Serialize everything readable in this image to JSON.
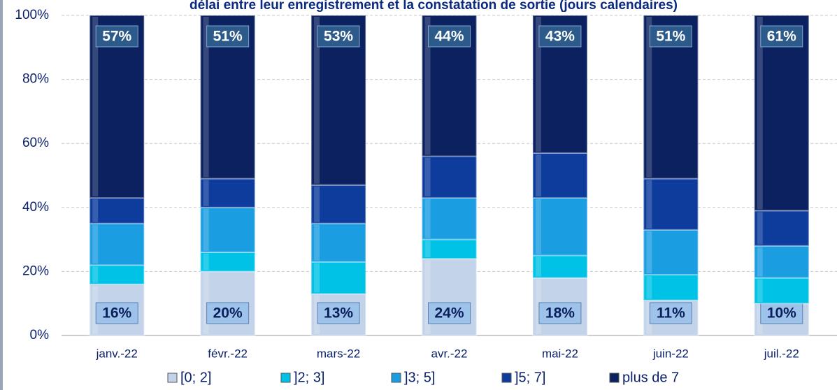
{
  "chart_data": {
    "type": "stacked_bar",
    "title": "délai entre leur enregistrement et la constatation de sortie (jours calendaires)",
    "categories": [
      "janv.-22",
      "févr.-22",
      "mars-22",
      "avr.-22",
      "mai-22",
      "juin-22",
      "juil.-22"
    ],
    "series": [
      {
        "name": "[0; 2]",
        "color": "#c3d3ea",
        "values": [
          16,
          20,
          13,
          24,
          18,
          11,
          10
        ],
        "value_labels": [
          "16%",
          "20%",
          "13%",
          "24%",
          "18%",
          "11%",
          "10%"
        ]
      },
      {
        "name": "]2; 3]",
        "color": "#00c2e6",
        "values": [
          6,
          6,
          10,
          6,
          7,
          8,
          8
        ]
      },
      {
        "name": "]3; 5]",
        "color": "#1b9de2",
        "values": [
          13,
          14,
          12,
          13,
          18,
          14,
          10
        ]
      },
      {
        "name": "]5; 7]",
        "color": "#0d3c9c",
        "values": [
          8,
          9,
          12,
          13,
          14,
          16,
          11
        ]
      },
      {
        "name": "plus de 7",
        "color": "#0b2160",
        "values": [
          57,
          51,
          53,
          44,
          43,
          51,
          61
        ],
        "value_labels": [
          "57%",
          "51%",
          "53%",
          "44%",
          "43%",
          "51%",
          "61%"
        ]
      }
    ],
    "ylim": [
      0,
      100
    ],
    "yticks": [
      {
        "value": 0,
        "label": "0%"
      },
      {
        "value": 20,
        "label": "20%"
      },
      {
        "value": 40,
        "label": "40%"
      },
      {
        "value": 60,
        "label": "60%"
      },
      {
        "value": 80,
        "label": "80%"
      },
      {
        "value": 100,
        "label": "100%"
      }
    ],
    "grid": true
  }
}
